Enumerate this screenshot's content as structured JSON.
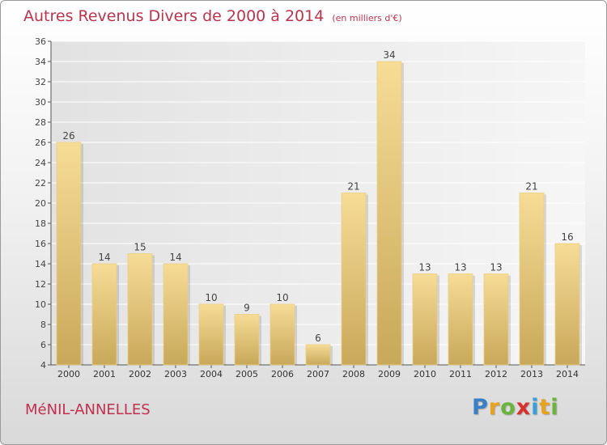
{
  "title": "Autres Revenus Divers de 2000 à 2014",
  "subtitle": "(en milliers d'€)",
  "commune": "MéNIL-ANNELLES",
  "logo": {
    "text": "Proxiti",
    "letters": [
      "P",
      "r",
      "o",
      "x",
      "i",
      "t",
      "i"
    ],
    "colors": [
      "#3a7fc4",
      "#e8a21b",
      "#6bb33a",
      "#d8302e",
      "#3a9fd8",
      "#e8a21b",
      "#6bb33a"
    ]
  },
  "chart_data": {
    "type": "bar",
    "categories": [
      "2000",
      "2001",
      "2002",
      "2003",
      "2004",
      "2005",
      "2006",
      "2007",
      "2008",
      "2009",
      "2010",
      "2011",
      "2012",
      "2013",
      "2014"
    ],
    "values": [
      26,
      14,
      15,
      14,
      10,
      9,
      10,
      6,
      21,
      34,
      13,
      13,
      13,
      21,
      16
    ],
    "ylim": [
      4,
      36
    ],
    "yticks": [
      4,
      6,
      8,
      10,
      12,
      14,
      16,
      18,
      20,
      22,
      24,
      26,
      28,
      30,
      32,
      34,
      36
    ],
    "grid": true,
    "bar_color_light": "#f7dc96",
    "bar_color_dark": "#c8a85a",
    "title_color": "#b8354e"
  }
}
